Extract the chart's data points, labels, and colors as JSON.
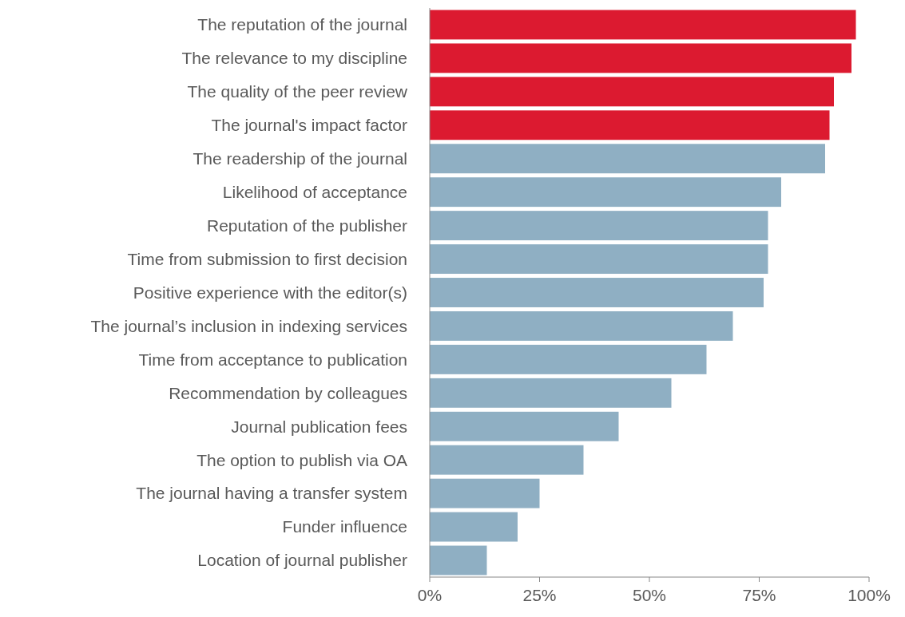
{
  "chart_data": {
    "type": "bar",
    "orientation": "horizontal",
    "categories": [
      "The reputation of the journal",
      "The relevance to my discipline",
      "The quality of the peer review",
      "The journal's impact factor",
      "The readership of the journal",
      "Likelihood of acceptance",
      "Reputation of the publisher",
      "Time from submission to first decision",
      "Positive experience with the editor(s)",
      "The journal’s inclusion in indexing services",
      "Time from acceptance to publication",
      "Recommendation by colleagues",
      "Journal publication fees",
      "The option to publish via OA",
      "The journal having a transfer system",
      "Funder influence",
      "Location of journal publisher"
    ],
    "values": [
      97,
      96,
      92,
      91,
      90,
      80,
      77,
      77,
      76,
      69,
      63,
      55,
      43,
      35,
      25,
      20,
      13
    ],
    "colors": [
      "#dc1a30",
      "#dc1a30",
      "#dc1a30",
      "#dc1a30",
      "#8fafc3",
      "#8fafc3",
      "#8fafc3",
      "#8fafc3",
      "#8fafc3",
      "#8fafc3",
      "#8fafc3",
      "#8fafc3",
      "#8fafc3",
      "#8fafc3",
      "#8fafc3",
      "#8fafc3",
      "#8fafc3"
    ],
    "xlim": [
      0,
      100
    ],
    "xticks": [
      {
        "value": 0,
        "label": "0%"
      },
      {
        "value": 25,
        "label": "25%"
      },
      {
        "value": 50,
        "label": "50%"
      },
      {
        "value": 75,
        "label": "75%"
      },
      {
        "value": 100,
        "label": "100%"
      }
    ],
    "grid": false
  }
}
